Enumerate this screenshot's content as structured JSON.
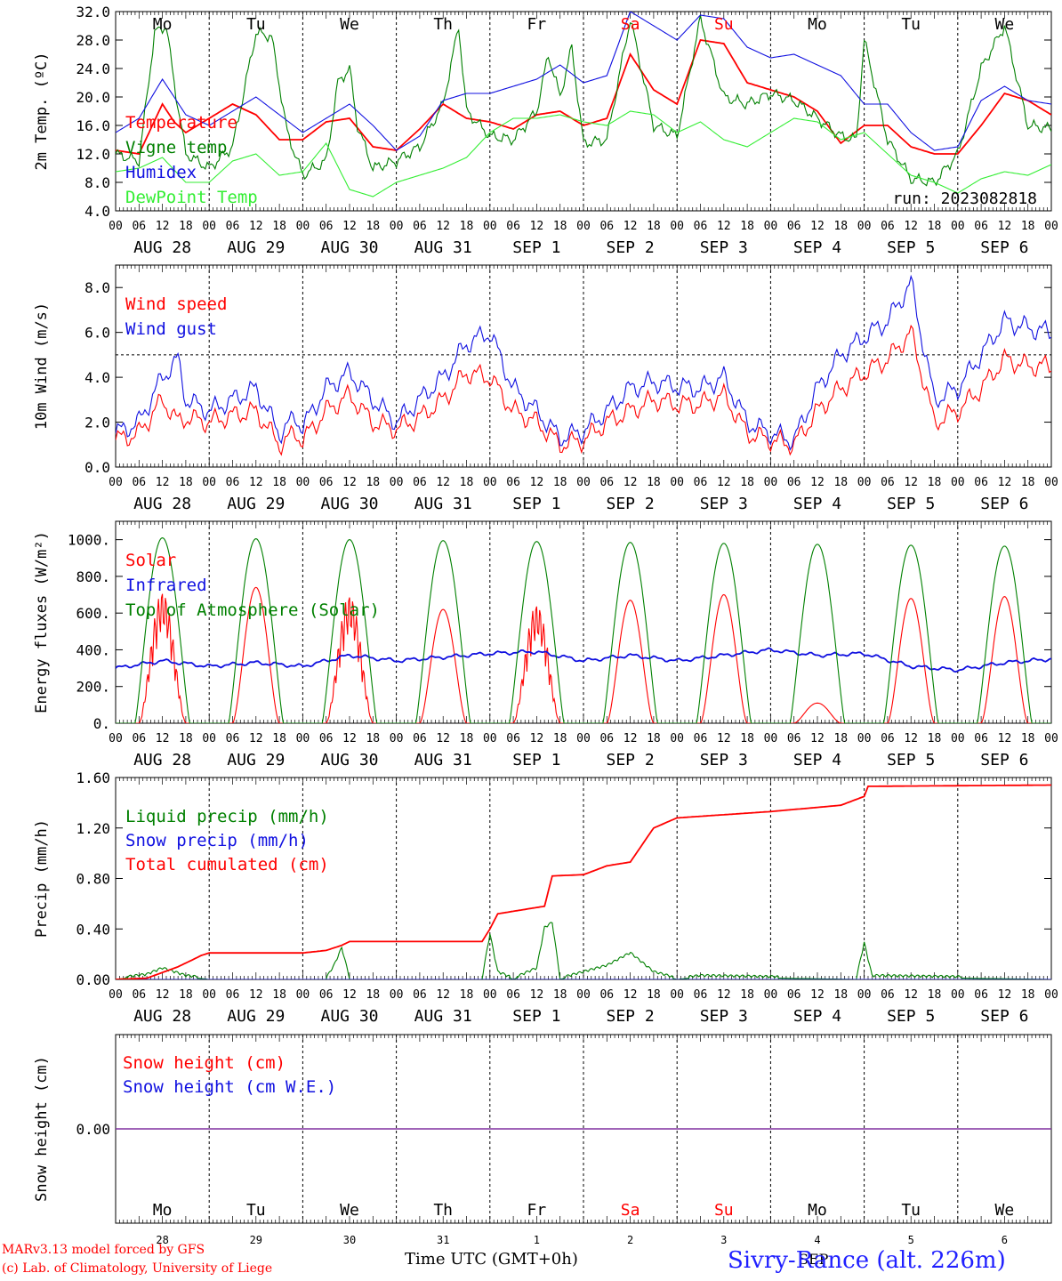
{
  "colors": {
    "red": "#ff0000",
    "green": "#008000",
    "lime": "#33ee33",
    "blue": "#1010e0",
    "purple": "#8030a0",
    "black": "#000000"
  },
  "run_label": "run: 2023082818",
  "x_axis_label": "Time UTC (GMT+0h)",
  "footer": {
    "line1": "MARv3.13 model forced by GFS",
    "line2": "(c) Lab. of Climatology, University of Liege",
    "location": "Sivry-Rance (alt. 226m)",
    "sep_label": "SEP"
  },
  "days_top": [
    "Mo",
    "Tu",
    "We",
    "Th",
    "Fr",
    "Sa",
    "Su",
    "Mo",
    "Tu",
    "We"
  ],
  "days_top_red": [
    false,
    false,
    false,
    false,
    false,
    true,
    true,
    false,
    false,
    false
  ],
  "date_labels": [
    "AUG 28",
    "AUG 29",
    "AUG 30",
    "AUG 31",
    "SEP  1",
    "SEP  2",
    "SEP  3",
    "SEP  4",
    "SEP  5",
    "SEP  6"
  ],
  "hour_labels": [
    "00",
    "06",
    "12",
    "18"
  ],
  "bottom_day_numbers": [
    "28",
    "29",
    "30",
    "31",
    "1",
    "2",
    "3",
    "4",
    "5",
    "6"
  ],
  "chart_data": [
    {
      "type": "line",
      "ylabel": "2m Temp. (ºC)",
      "ylim": [
        4.0,
        32.0
      ],
      "yticks": [
        "4.0",
        "8.0",
        "12.0",
        "16.0",
        "20.0",
        "24.0",
        "28.0",
        "32.0"
      ],
      "x_unit": "hours since AUG 28 00 UTC",
      "series": [
        {
          "name": "Temperature",
          "color": "#ff0000",
          "x": [
            0,
            6,
            12,
            15,
            18,
            24,
            30,
            36,
            42,
            48,
            54,
            60,
            66,
            72,
            78,
            84,
            90,
            96,
            102,
            108,
            114,
            120,
            126,
            132,
            138,
            144,
            150,
            156,
            162,
            168,
            174,
            180,
            186,
            192,
            198,
            204,
            210,
            216,
            222,
            228,
            234,
            240
          ],
          "values": [
            12.5,
            12.0,
            19.0,
            16.5,
            15.0,
            17.0,
            19.0,
            17.5,
            14.0,
            14.0,
            16.5,
            17.0,
            13.0,
            12.5,
            15.5,
            19.0,
            17.0,
            16.5,
            15.5,
            17.5,
            18.0,
            16.0,
            17.0,
            26.0,
            21.0,
            19.0,
            28.0,
            27.5,
            22.0,
            21.0,
            20.0,
            18.0,
            13.5,
            16.0,
            16.0,
            13.0,
            12.0,
            12.0,
            16.0,
            20.5,
            19.5,
            17.5
          ]
        },
        {
          "name": "Vigne temp",
          "color": "#008000",
          "x": [
            0,
            6,
            10,
            13,
            15,
            18,
            24,
            30,
            36,
            40,
            44,
            48,
            54,
            57,
            60,
            62,
            66,
            72,
            78,
            84,
            88,
            90,
            96,
            102,
            108,
            111,
            114,
            117,
            120,
            126,
            132,
            138,
            144,
            150,
            156,
            162,
            168,
            174,
            180,
            186,
            190,
            192,
            198,
            204,
            210,
            216,
            222,
            228,
            234,
            240
          ],
          "values": [
            12.0,
            11.0,
            29.0,
            30.0,
            22.0,
            12.0,
            10.0,
            13.0,
            29.0,
            28.5,
            15.0,
            9.0,
            11.0,
            22.0,
            24.0,
            16.0,
            10.0,
            11.0,
            13.0,
            19.0,
            30.0,
            18.0,
            14.5,
            14.0,
            18.0,
            26.0,
            20.0,
            27.0,
            13.5,
            14.0,
            31.0,
            16.0,
            14.5,
            31.0,
            20.0,
            19.0,
            20.5,
            19.5,
            17.0,
            14.5,
            14.0,
            28.0,
            14.0,
            8.5,
            8.0,
            12.0,
            24.0,
            30.0,
            16.0,
            15.5
          ]
        },
        {
          "name": "Humidex",
          "color": "#1010e0",
          "x": [
            0,
            6,
            12,
            18,
            24,
            30,
            36,
            42,
            48,
            54,
            60,
            66,
            72,
            78,
            84,
            90,
            96,
            102,
            108,
            114,
            120,
            126,
            132,
            138,
            144,
            150,
            156,
            162,
            168,
            174,
            180,
            186,
            192,
            198,
            204,
            210,
            216,
            222,
            228,
            234,
            240
          ],
          "values": [
            15.0,
            17.0,
            22.5,
            17.5,
            16.0,
            18.0,
            20.0,
            17.5,
            15.0,
            17.0,
            19.0,
            16.0,
            12.5,
            14.5,
            19.5,
            20.5,
            20.5,
            21.5,
            22.5,
            24.5,
            22.0,
            23.0,
            32.0,
            30.0,
            28.0,
            31.5,
            31.0,
            27.0,
            25.5,
            26.0,
            24.5,
            23.0,
            19.0,
            19.0,
            15.0,
            12.5,
            13.0,
            19.5,
            21.5,
            19.5,
            19.0
          ]
        },
        {
          "name": "DewPoint Temp",
          "color": "#33ee33",
          "x": [
            0,
            6,
            12,
            18,
            24,
            30,
            36,
            42,
            48,
            54,
            60,
            66,
            72,
            78,
            84,
            90,
            96,
            102,
            108,
            114,
            120,
            126,
            132,
            138,
            144,
            150,
            156,
            162,
            168,
            174,
            180,
            186,
            192,
            198,
            204,
            210,
            216,
            222,
            228,
            234,
            240
          ],
          "values": [
            9.5,
            10.0,
            11.5,
            8.0,
            8.0,
            11.0,
            12.0,
            9.0,
            9.5,
            13.5,
            7.0,
            6.0,
            8.0,
            9.0,
            10.0,
            11.5,
            15.0,
            17.0,
            17.0,
            17.5,
            16.5,
            16.0,
            18.0,
            17.5,
            15.0,
            16.5,
            14.0,
            13.0,
            15.0,
            17.0,
            16.5,
            14.0,
            15.0,
            12.0,
            9.0,
            8.0,
            6.5,
            8.5,
            9.5,
            9.0,
            10.5
          ]
        }
      ]
    },
    {
      "type": "line",
      "ylabel": "10m Wind (m/s)",
      "ylim": [
        0.0,
        9.0
      ],
      "yticks": [
        "0.0",
        "2.0",
        "4.0",
        "6.0",
        "8.0"
      ],
      "reference_line": 5.0,
      "x_unit": "hours since AUG 28 00 UTC",
      "series": [
        {
          "name": "Wind speed",
          "color": "#ff0000",
          "x": [
            0,
            6,
            12,
            16,
            18,
            24,
            30,
            36,
            42,
            46,
            48,
            54,
            60,
            66,
            72,
            78,
            84,
            90,
            96,
            102,
            108,
            114,
            120,
            126,
            132,
            138,
            144,
            150,
            156,
            162,
            168,
            174,
            180,
            186,
            192,
            198,
            204,
            210,
            216,
            222,
            228,
            234,
            240
          ],
          "values": [
            1.2,
            1.5,
            3.0,
            2.0,
            2.2,
            2.0,
            2.3,
            2.5,
            1.0,
            1.5,
            1.2,
            2.5,
            3.2,
            2.0,
            1.7,
            2.2,
            3.0,
            4.2,
            4.0,
            2.5,
            2.0,
            1.0,
            1.2,
            2.0,
            2.5,
            3.0,
            2.8,
            2.8,
            3.2,
            1.5,
            1.2,
            1.0,
            2.5,
            3.5,
            4.2,
            4.8,
            6.0,
            2.0,
            2.5,
            3.5,
            4.8,
            4.5,
            4.5
          ]
        },
        {
          "name": "Wind gust",
          "color": "#1010e0",
          "x": [
            0,
            6,
            12,
            16,
            18,
            24,
            30,
            36,
            42,
            46,
            48,
            54,
            60,
            66,
            72,
            78,
            84,
            90,
            96,
            102,
            108,
            114,
            120,
            126,
            132,
            138,
            144,
            150,
            156,
            162,
            168,
            174,
            180,
            186,
            192,
            198,
            204,
            210,
            216,
            222,
            228,
            234,
            240
          ],
          "values": [
            1.5,
            2.0,
            4.0,
            4.8,
            3.0,
            2.5,
            3.0,
            3.5,
            1.5,
            2.2,
            1.8,
            3.5,
            4.2,
            3.0,
            2.0,
            3.0,
            4.0,
            5.5,
            6.0,
            3.5,
            2.5,
            1.3,
            1.6,
            2.5,
            3.5,
            3.8,
            3.6,
            3.5,
            4.0,
            2.0,
            1.5,
            1.2,
            3.5,
            5.0,
            5.8,
            6.5,
            8.2,
            3.0,
            3.5,
            5.0,
            6.5,
            6.2,
            6.0
          ]
        }
      ]
    },
    {
      "type": "line",
      "ylabel": "Energy fluxes (W/m²)",
      "ylim": [
        0,
        1100
      ],
      "yticks": [
        "0.",
        "200.",
        "400.",
        "600.",
        "800.",
        "1000."
      ],
      "x_unit": "hours since AUG 28 00 UTC",
      "series": [
        {
          "name": "Solar",
          "color": "#ff0000",
          "daily_peak": [
            720,
            740,
            700,
            620,
            650,
            670,
            700,
            110,
            680,
            690
          ]
        },
        {
          "name": "Infrared",
          "color": "#1010e0",
          "x": [
            0,
            12,
            24,
            36,
            48,
            60,
            72,
            84,
            96,
            108,
            120,
            132,
            144,
            156,
            168,
            180,
            192,
            204,
            216,
            228,
            240
          ],
          "values": [
            300,
            340,
            310,
            330,
            310,
            370,
            340,
            360,
            380,
            390,
            340,
            370,
            340,
            370,
            400,
            370,
            380,
            310,
            290,
            330,
            350
          ]
        },
        {
          "name": "Top of Atmosphere (Solar)",
          "color": "#008000",
          "daily_peak": [
            1010,
            1005,
            1000,
            995,
            990,
            985,
            980,
            975,
            970,
            965
          ]
        }
      ]
    },
    {
      "type": "line",
      "ylabel": "Precip (mm/h)",
      "ylim": [
        0.0,
        1.6
      ],
      "yticks": [
        "0.00",
        "0.40",
        "0.80",
        "1.20",
        "1.60"
      ],
      "x_unit": "hours since AUG 28 00 UTC",
      "series": [
        {
          "name": "Liquid precip (mm/h)",
          "color": "#008000",
          "x": [
            0,
            8,
            12,
            18,
            24,
            54,
            56,
            58,
            60,
            94,
            96,
            98,
            102,
            108,
            110,
            112,
            114,
            120,
            126,
            132,
            138,
            144,
            150,
            190,
            192,
            194,
            240
          ],
          "values": [
            0,
            0.03,
            0.08,
            0.02,
            0,
            0,
            0.1,
            0.24,
            0,
            0,
            0.35,
            0.05,
            0,
            0.08,
            0.4,
            0.44,
            0,
            0.05,
            0.1,
            0.2,
            0.05,
            0,
            0.02,
            0,
            0.28,
            0.02,
            0
          ]
        },
        {
          "name": "Snow precip (mm/h)",
          "color": "#1010e0",
          "x": [
            0,
            240
          ],
          "values": [
            0,
            0
          ]
        },
        {
          "name": "Total cumulated (cm)",
          "color": "#ff0000",
          "x": [
            0,
            8,
            16,
            22,
            24,
            48,
            54,
            58,
            60,
            72,
            94,
            96,
            98,
            110,
            112,
            120,
            126,
            132,
            138,
            144,
            168,
            186,
            192,
            193,
            240
          ],
          "values": [
            0,
            0.01,
            0.1,
            0.19,
            0.21,
            0.21,
            0.23,
            0.27,
            0.3,
            0.3,
            0.3,
            0.4,
            0.52,
            0.58,
            0.82,
            0.83,
            0.9,
            0.93,
            1.2,
            1.28,
            1.33,
            1.38,
            1.45,
            1.53,
            1.54
          ]
        }
      ]
    },
    {
      "type": "line",
      "ylabel": "Snow height (cm)",
      "ylim": [
        -1.0,
        1.0
      ],
      "yticks": [
        "0.00"
      ],
      "x_unit": "hours since AUG 28 00 UTC",
      "series": [
        {
          "name": "Snow height (cm)",
          "color": "#ff0000",
          "x": [
            0,
            240
          ],
          "values": [
            0,
            0
          ]
        },
        {
          "name": "Snow height (cm W.E.)",
          "color": "#1010e0",
          "x": [
            0,
            240
          ],
          "values": [
            0,
            0
          ]
        }
      ]
    }
  ]
}
